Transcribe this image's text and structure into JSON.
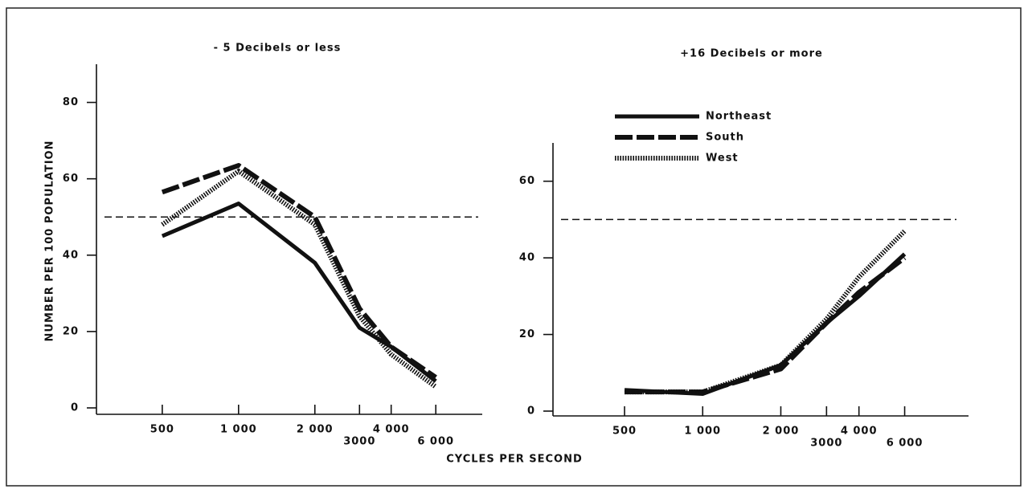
{
  "chart_data": [
    {
      "type": "line",
      "title": "- 5 Decibels or less",
      "xlabel": "CYCLES PER SECOND",
      "ylabel": "NUMBER PER 100 POPULATION",
      "x": [
        500,
        1000,
        2000,
        3000,
        4000,
        6000
      ],
      "xscale": "log",
      "xlim": [
        275,
        8200
      ],
      "xticks": [
        500,
        {
          "value": 1000,
          "label": "1 000"
        },
        {
          "value": 2000,
          "label": "2 000"
        },
        3000,
        {
          "value": 4000,
          "label": "4 000"
        },
        {
          "value": 6000,
          "label": "6 000"
        }
      ],
      "ylim": [
        0,
        90
      ],
      "yticks": [
        0,
        20,
        40,
        60,
        80
      ],
      "reference_line": 50,
      "series": [
        {
          "color": "#111111",
          "style": "solid",
          "values": [
            45,
            53.5,
            38,
            21,
            16,
            7
          ]
        },
        {
          "color": "#111111",
          "style": "dashed",
          "values": [
            56.5,
            63.5,
            50,
            26,
            16,
            8
          ]
        },
        {
          "color": "#111111",
          "style": "dotted",
          "values": [
            48,
            62,
            48,
            24,
            14,
            5.5
          ]
        }
      ]
    },
    {
      "type": "line",
      "title": "+16 Decibels or more",
      "x": [
        500,
        1000,
        2000,
        3000,
        4000,
        6000
      ],
      "xscale": "log",
      "xlim": [
        265,
        9500
      ],
      "xticks": [
        500,
        {
          "value": 1000,
          "label": "1 000"
        },
        {
          "value": 2000,
          "label": "2 000"
        },
        3000,
        {
          "value": 4000,
          "label": "4 000"
        },
        {
          "value": 6000,
          "label": "6 000"
        }
      ],
      "ylim": [
        0,
        70
      ],
      "yticks": [
        0,
        20,
        40,
        60
      ],
      "reference_line": 50,
      "legend": "upper-left",
      "series": [
        {
          "name": "Northeast",
          "color": "#111111",
          "style": "solid",
          "values": [
            5.5,
            4.5,
            12,
            23,
            30,
            41
          ]
        },
        {
          "name": "South",
          "color": "#111111",
          "style": "dashed",
          "values": [
            5,
            5,
            11,
            23,
            31,
            40
          ]
        },
        {
          "name": "West",
          "color": "#111111",
          "style": "dotted",
          "values": [
            5,
            5,
            12,
            24,
            35,
            47
          ]
        }
      ]
    }
  ]
}
